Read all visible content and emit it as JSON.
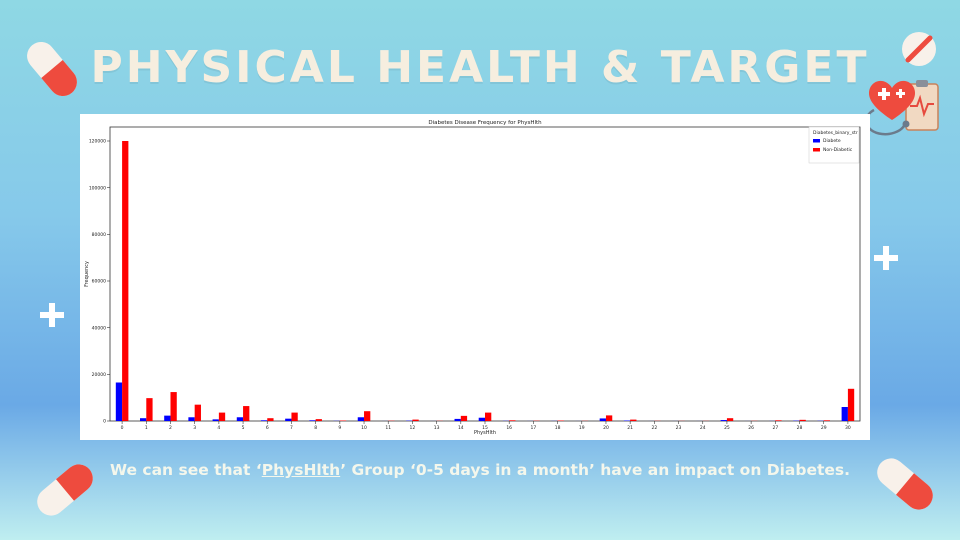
{
  "slide": {
    "title": "PHYSICAL HEALTH & TARGET",
    "caption_before": "We can see that ‘",
    "caption_link": "PhysHlth",
    "caption_after": "’ Group ‘0-5 days in a month’ have an impact on Diabetes.",
    "colors": {
      "title": "#f6eedf",
      "caption": "#f4f7ec",
      "pill_red": "#ee4b3e",
      "pill_white": "#f8f1ea"
    },
    "icons": [
      "pill-icon",
      "plus-icon",
      "heart-stethoscope-icon",
      "clipboard-icon"
    ]
  },
  "chart_data": {
    "type": "bar",
    "title": "Diabetes Disease Frequency for PhysHlth",
    "xlabel": "PhysHlth",
    "ylabel": "Frequency",
    "legend_title": "Diabetes_binary_str",
    "legend_position": "top-right",
    "grid": false,
    "categories": [
      "0",
      "1",
      "2",
      "3",
      "4",
      "5",
      "6",
      "7",
      "8",
      "9",
      "10",
      "11",
      "12",
      "13",
      "14",
      "15",
      "16",
      "17",
      "18",
      "19",
      "20",
      "21",
      "22",
      "23",
      "24",
      "25",
      "26",
      "27",
      "28",
      "29",
      "30"
    ],
    "yticks": [
      "0",
      "20000",
      "40000",
      "60000",
      "80000",
      "100000",
      "120000"
    ],
    "ylim": [
      0,
      126000
    ],
    "series": [
      {
        "name": "Diabete",
        "color": "#0000ff",
        "values": [
          16500,
          1200,
          2300,
          1600,
          700,
          1600,
          300,
          1000,
          300,
          80,
          1600,
          20,
          150,
          20,
          900,
          1400,
          80,
          30,
          50,
          20,
          1100,
          200,
          20,
          20,
          20,
          400,
          20,
          40,
          150,
          100,
          6000
        ]
      },
      {
        "name": "Non-Diabetic",
        "color": "#ff0000",
        "values": [
          120000,
          9800,
          12400,
          7000,
          3600,
          6400,
          1200,
          3600,
          800,
          200,
          4200,
          120,
          600,
          80,
          2200,
          3600,
          300,
          120,
          200,
          80,
          2400,
          600,
          80,
          60,
          60,
          1200,
          80,
          300,
          500,
          300,
          13800
        ]
      }
    ]
  }
}
